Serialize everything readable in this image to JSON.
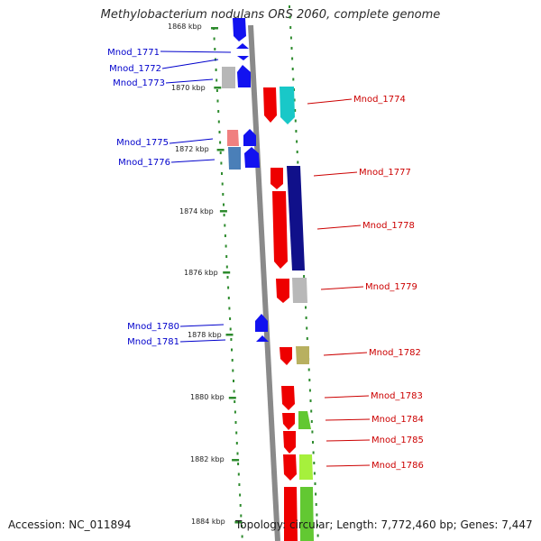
{
  "title": "Methylobacterium nodulans ORS 2060, complete genome",
  "footer": {
    "accession": "Accession: NC_011894",
    "summary": "Topology: circular; Length: 7,772,460 bp; Genes: 7,447"
  },
  "colors": {
    "backbone": "#8a8a8a",
    "tick_dots": "#2e8b2e",
    "left_label": "#0000cc",
    "right_label": "#cc0000"
  },
  "bp_labels": [
    "1868 kbp",
    "1870 kbp",
    "1872 kbp",
    "1874 kbp",
    "1876 kbp",
    "1878 kbp",
    "1880 kbp",
    "1882 kbp",
    "1884 kbp"
  ],
  "genes_left": [
    {
      "label": "Mnod_1771"
    },
    {
      "label": "Mnod_1772"
    },
    {
      "label": "Mnod_1773"
    },
    {
      "label": "Mnod_1775"
    },
    {
      "label": "Mnod_1776"
    },
    {
      "label": "Mnod_1780"
    },
    {
      "label": "Mnod_1781"
    }
  ],
  "genes_right": [
    {
      "label": "Mnod_1774"
    },
    {
      "label": "Mnod_1777"
    },
    {
      "label": "Mnod_1778"
    },
    {
      "label": "Mnod_1779"
    },
    {
      "label": "Mnod_1782"
    },
    {
      "label": "Mnod_1783"
    },
    {
      "label": "Mnod_1784"
    },
    {
      "label": "Mnod_1785"
    },
    {
      "label": "Mnod_1786"
    }
  ]
}
